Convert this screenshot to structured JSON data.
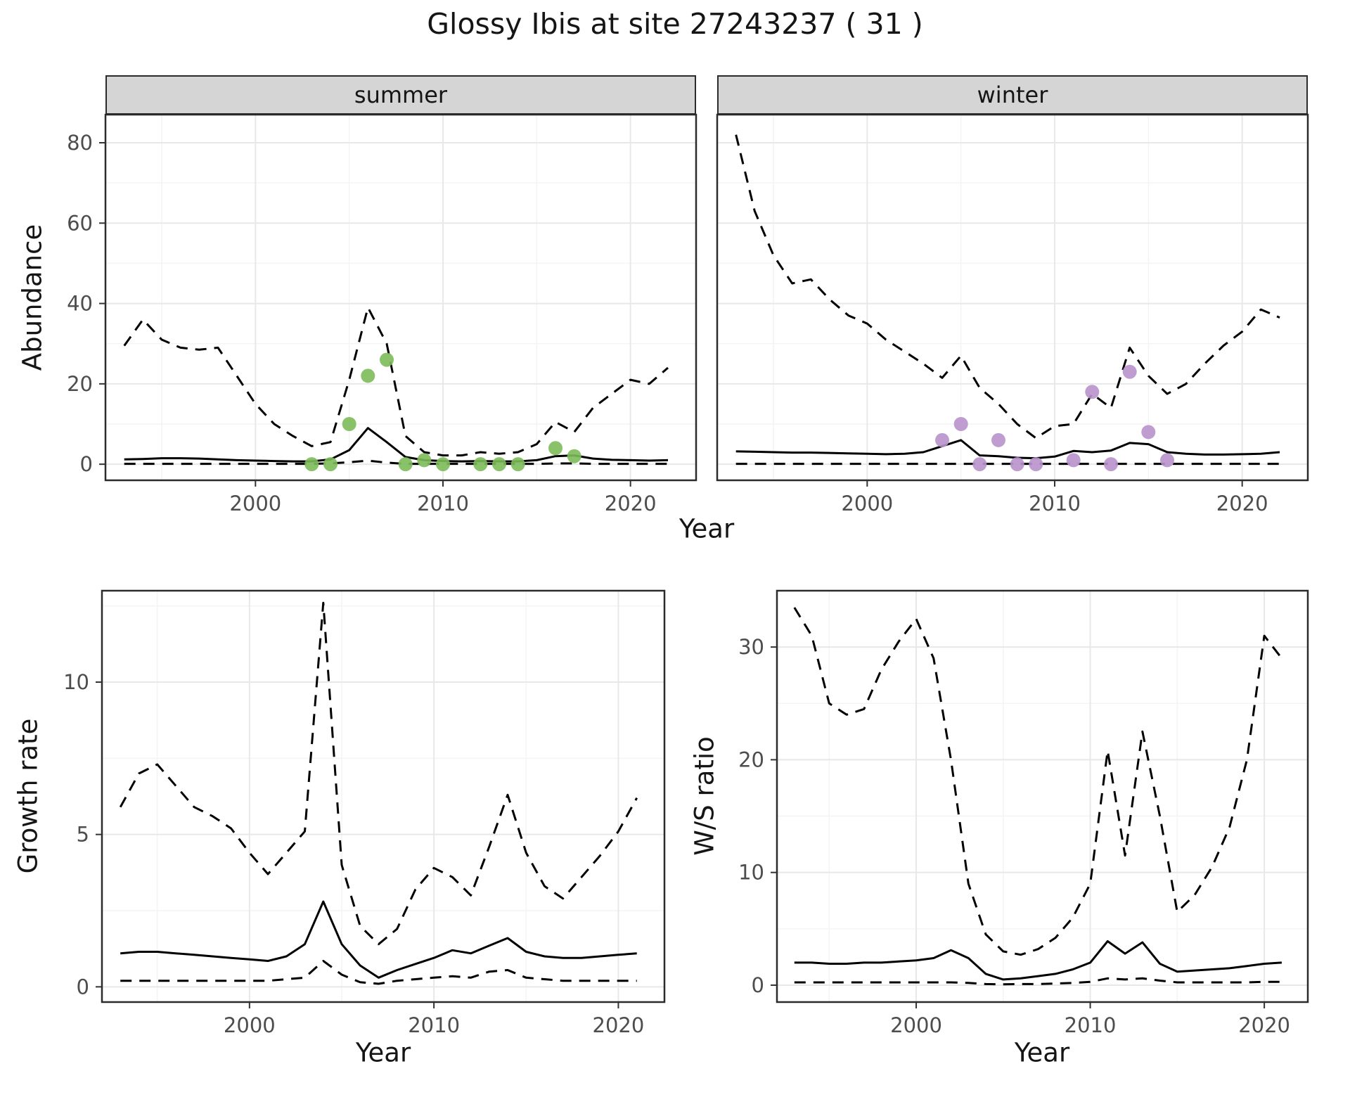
{
  "title": "Glossy Ibis at site 27243237 ( 31 )",
  "colors": {
    "line": "#000000",
    "points_summer": "#7cbb59",
    "points_winter": "#b992cc",
    "grid_major": "#e8e8e8",
    "grid_minor": "#f4f4f4",
    "strip_bg": "#d5d5d5",
    "panel_border": "#2b2b2b",
    "tick_mark": "#333333",
    "tick_label": "#4d4d4d"
  },
  "chart_data": [
    {
      "type": "line",
      "panel": "abundance-summer",
      "facet_label": "summer",
      "xlabel": "Year",
      "ylabel": "Abundance",
      "xlim": [
        1992,
        2023.5
      ],
      "ylim": [
        -4,
        87
      ],
      "xticks": [
        2000,
        2010,
        2020
      ],
      "xminor": [
        1995,
        2005,
        2015
      ],
      "yticks": [
        0,
        20,
        40,
        60,
        80
      ],
      "yminor": [
        10,
        30,
        50,
        70
      ],
      "x": [
        1993,
        1994,
        1995,
        1996,
        1997,
        1998,
        1999,
        2000,
        2001,
        2002,
        2003,
        2004,
        2005,
        2006,
        2007,
        2008,
        2009,
        2010,
        2011,
        2012,
        2013,
        2014,
        2015,
        2016,
        2017,
        2018,
        2019,
        2020,
        2021,
        2022
      ],
      "series": [
        {
          "name": "upper_ci",
          "style": "dashed",
          "values": [
            29.5,
            36,
            31,
            29,
            28.5,
            29,
            22,
            15,
            10,
            7,
            4.5,
            5.5,
            21,
            39,
            30,
            7,
            3,
            2.2,
            2.2,
            3,
            2.6,
            3,
            5,
            10.5,
            8,
            14,
            17.5,
            21,
            20,
            24
          ]
        },
        {
          "name": "median",
          "style": "solid",
          "values": [
            1.2,
            1.3,
            1.5,
            1.5,
            1.4,
            1.2,
            1.0,
            0.9,
            0.8,
            0.7,
            0.7,
            1.2,
            3.5,
            9,
            5.5,
            1.8,
            1.0,
            0.8,
            0.7,
            0.8,
            0.7,
            0.7,
            1.0,
            2.0,
            2.2,
            1.4,
            1.1,
            1.0,
            0.9,
            1.0
          ]
        },
        {
          "name": "lower_ci",
          "style": "dashed",
          "values": [
            0.1,
            0.1,
            0.1,
            0.1,
            0.1,
            0.1,
            0.1,
            0.1,
            0.1,
            0.1,
            0.1,
            0.2,
            0.5,
            0.9,
            0.4,
            0.1,
            0.1,
            0.1,
            0.1,
            0.1,
            0.1,
            0.1,
            0.1,
            0.2,
            0.2,
            0.1,
            0.1,
            0.1,
            0.1,
            0.1
          ]
        }
      ],
      "points": {
        "name": "observed-counts-summer",
        "color": "#7cbb59",
        "x": [
          2003,
          2004,
          2005,
          2006,
          2007,
          2008,
          2009,
          2010,
          2012,
          2013,
          2014,
          2016,
          2017
        ],
        "y": [
          0,
          0,
          10,
          22,
          26,
          0,
          1,
          0,
          0,
          0,
          0,
          4,
          2
        ]
      }
    },
    {
      "type": "line",
      "panel": "abundance-winter",
      "facet_label": "winter",
      "xlabel": "",
      "ylabel": "",
      "xlim": [
        1992,
        2023.5
      ],
      "ylim": [
        -4,
        87
      ],
      "xticks": [
        2000,
        2010,
        2020
      ],
      "xminor": [
        1995,
        2005,
        2015
      ],
      "yticks": [
        0,
        20,
        40,
        60,
        80
      ],
      "yminor": [
        10,
        30,
        50,
        70
      ],
      "x": [
        1993,
        1994,
        1995,
        1996,
        1997,
        1998,
        1999,
        2000,
        2001,
        2002,
        2003,
        2004,
        2005,
        2006,
        2007,
        2008,
        2009,
        2010,
        2011,
        2012,
        2013,
        2014,
        2015,
        2016,
        2017,
        2018,
        2019,
        2020,
        2021,
        2022
      ],
      "series": [
        {
          "name": "upper_ci",
          "style": "dashed",
          "values": [
            82,
            63,
            52,
            45,
            46,
            41,
            37,
            35,
            31,
            28,
            25,
            21.5,
            27,
            19,
            15,
            10,
            6.5,
            9.5,
            10,
            17.5,
            14,
            29,
            22,
            17.5,
            20,
            25,
            29.5,
            33,
            38.5,
            36.5
          ]
        },
        {
          "name": "median",
          "style": "solid",
          "values": [
            3.2,
            3.1,
            3.0,
            2.9,
            2.9,
            2.8,
            2.7,
            2.6,
            2.5,
            2.6,
            3.0,
            4.5,
            6.0,
            2.2,
            2.0,
            1.6,
            1.5,
            1.9,
            3.3,
            3.0,
            3.4,
            5.3,
            5.0,
            3.0,
            2.6,
            2.4,
            2.4,
            2.5,
            2.6,
            3.0
          ]
        },
        {
          "name": "lower_ci",
          "style": "dashed",
          "values": [
            0.1,
            0.1,
            0.1,
            0.1,
            0.1,
            0.1,
            0.1,
            0.1,
            0.1,
            0.1,
            0.1,
            0.1,
            0.1,
            0.1,
            0.1,
            0.1,
            0.1,
            0.1,
            0.1,
            0.1,
            0.1,
            0.1,
            0.1,
            0.1,
            0.1,
            0.1,
            0.1,
            0.1,
            0.1,
            0.1
          ]
        }
      ],
      "points": {
        "name": "observed-counts-winter",
        "color": "#b992cc",
        "x": [
          2004,
          2005,
          2006,
          2007,
          2008,
          2009,
          2011,
          2012,
          2013,
          2014,
          2015,
          2016
        ],
        "y": [
          6,
          10,
          0,
          6,
          0,
          0,
          1,
          18,
          0,
          23,
          8,
          1
        ]
      }
    },
    {
      "type": "line",
      "panel": "growth-rate",
      "facet_label": "",
      "xlabel": "Year",
      "ylabel": "Growth rate",
      "xlim": [
        1992,
        2022.5
      ],
      "ylim": [
        -0.5,
        13
      ],
      "xticks": [
        2000,
        2010,
        2020
      ],
      "xminor": [
        1995,
        2005,
        2015
      ],
      "yticks": [
        0,
        5,
        10
      ],
      "yminor": [
        2.5,
        7.5,
        12.5
      ],
      "x": [
        1993,
        1994,
        1995,
        1996,
        1997,
        1998,
        1999,
        2000,
        2001,
        2002,
        2003,
        2004,
        2005,
        2006,
        2007,
        2008,
        2009,
        2010,
        2011,
        2012,
        2013,
        2014,
        2015,
        2016,
        2017,
        2018,
        2019,
        2020,
        2021
      ],
      "series": [
        {
          "name": "upper_ci",
          "style": "dashed",
          "values": [
            5.9,
            7.0,
            7.3,
            6.6,
            5.9,
            5.6,
            5.2,
            4.4,
            3.7,
            4.4,
            5.1,
            12.6,
            4.0,
            2.0,
            1.4,
            1.9,
            3.2,
            3.9,
            3.6,
            3.0,
            4.6,
            6.3,
            4.4,
            3.3,
            2.9,
            3.6,
            4.3,
            5.1,
            6.2
          ]
        },
        {
          "name": "median",
          "style": "solid",
          "values": [
            1.1,
            1.15,
            1.15,
            1.1,
            1.05,
            1.0,
            0.95,
            0.9,
            0.85,
            1.0,
            1.4,
            2.8,
            1.4,
            0.7,
            0.3,
            0.55,
            0.75,
            0.95,
            1.2,
            1.1,
            1.35,
            1.6,
            1.15,
            1.0,
            0.95,
            0.95,
            1.0,
            1.05,
            1.1
          ]
        },
        {
          "name": "lower_ci",
          "style": "dashed",
          "values": [
            0.2,
            0.2,
            0.2,
            0.2,
            0.2,
            0.2,
            0.2,
            0.2,
            0.2,
            0.25,
            0.3,
            0.85,
            0.4,
            0.15,
            0.1,
            0.2,
            0.25,
            0.3,
            0.35,
            0.3,
            0.5,
            0.55,
            0.3,
            0.25,
            0.2,
            0.2,
            0.2,
            0.2,
            0.2
          ]
        }
      ],
      "points": null
    },
    {
      "type": "line",
      "panel": "ws-ratio",
      "facet_label": "",
      "xlabel": "Year",
      "ylabel": "W/S ratio",
      "xlim": [
        1992,
        2022.5
      ],
      "ylim": [
        -1.5,
        35
      ],
      "xticks": [
        2000,
        2010,
        2020
      ],
      "xminor": [
        1995,
        2005,
        2015
      ],
      "yticks": [
        0,
        10,
        20,
        30
      ],
      "yminor": [
        5,
        15,
        25
      ],
      "x": [
        1993,
        1994,
        1995,
        1996,
        1997,
        1998,
        1999,
        2000,
        2001,
        2002,
        2003,
        2004,
        2005,
        2006,
        2007,
        2008,
        2009,
        2010,
        2011,
        2012,
        2013,
        2014,
        2015,
        2016,
        2017,
        2018,
        2019,
        2020,
        2021
      ],
      "series": [
        {
          "name": "upper_ci",
          "style": "dashed",
          "values": [
            33.5,
            31.0,
            25.0,
            24.0,
            24.5,
            28.0,
            30.5,
            32.5,
            29.0,
            20.0,
            9.0,
            4.5,
            3.0,
            2.7,
            3.2,
            4.2,
            6.0,
            9.0,
            20.8,
            11.5,
            22.5,
            15.0,
            6.5,
            8.0,
            10.5,
            14.0,
            20.0,
            31.0,
            29.0
          ]
        },
        {
          "name": "median",
          "style": "solid",
          "values": [
            2.0,
            2.0,
            1.9,
            1.9,
            2.0,
            2.0,
            2.1,
            2.2,
            2.4,
            3.1,
            2.4,
            1.0,
            0.5,
            0.6,
            0.8,
            1.0,
            1.4,
            2.0,
            3.9,
            2.8,
            3.8,
            1.9,
            1.2,
            1.3,
            1.4,
            1.5,
            1.7,
            1.9,
            2.0
          ]
        },
        {
          "name": "lower_ci",
          "style": "dashed",
          "values": [
            0.25,
            0.25,
            0.25,
            0.25,
            0.25,
            0.25,
            0.25,
            0.25,
            0.25,
            0.25,
            0.2,
            0.1,
            0.08,
            0.1,
            0.1,
            0.15,
            0.2,
            0.3,
            0.6,
            0.5,
            0.6,
            0.4,
            0.25,
            0.25,
            0.25,
            0.25,
            0.25,
            0.3,
            0.3
          ]
        }
      ],
      "points": null
    }
  ]
}
